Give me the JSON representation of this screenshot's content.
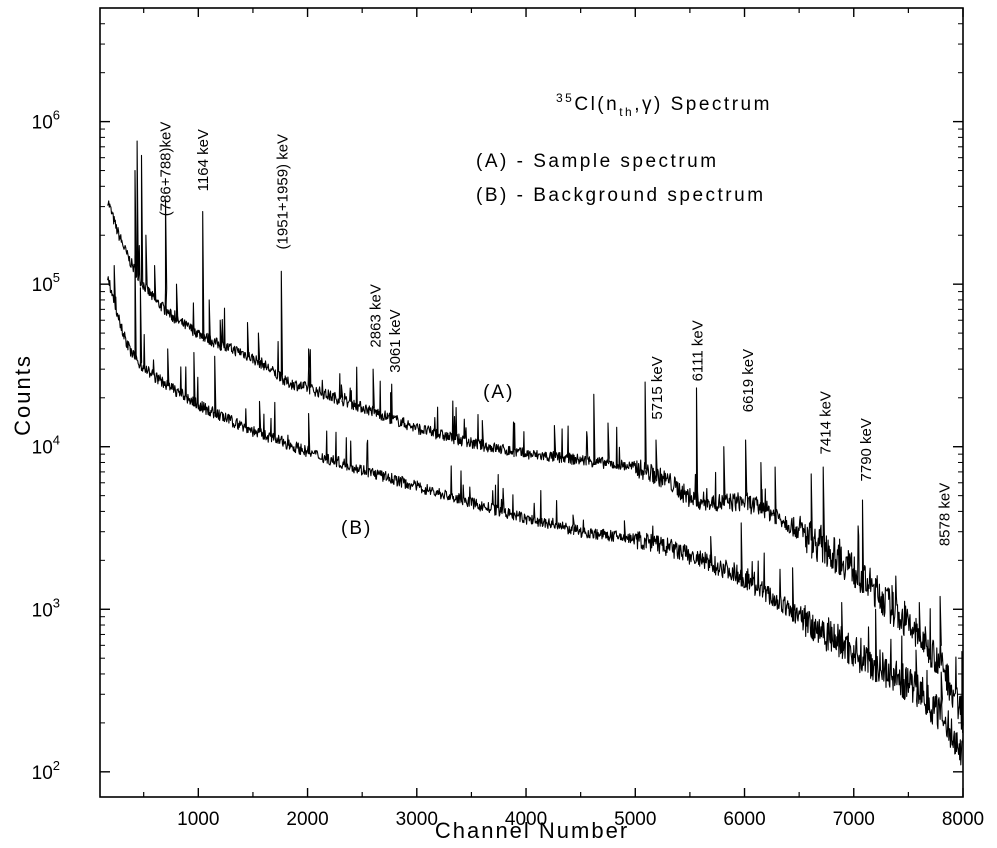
{
  "chart_data": {
    "type": "line",
    "title_parts": {
      "mass": "35",
      "element": "Cl(n",
      "sub": "th",
      "rest": ",γ) Spectrum"
    },
    "xlabel": "Channel Number",
    "ylabel": "Counts",
    "xlim": [
      100,
      8000
    ],
    "ylim": [
      70,
      5000000
    ],
    "y_scale": "log",
    "grid": false,
    "x_ticks": [
      {
        "value": 1000,
        "label": "1000"
      },
      {
        "value": 2000,
        "label": "2000"
      },
      {
        "value": 3000,
        "label": "3000"
      },
      {
        "value": 4000,
        "label": "4000"
      },
      {
        "value": 5000,
        "label": "5000"
      },
      {
        "value": 6000,
        "label": "6000"
      },
      {
        "value": 7000,
        "label": "7000"
      },
      {
        "value": 8000,
        "label": "8000"
      }
    ],
    "y_ticks": [
      {
        "value": 100,
        "base": "10",
        "exp": "2"
      },
      {
        "value": 1000,
        "base": "10",
        "exp": "3"
      },
      {
        "value": 10000,
        "base": "10",
        "exp": "4"
      },
      {
        "value": 100000,
        "base": "10",
        "exp": "5"
      },
      {
        "value": 1000000,
        "base": "10",
        "exp": "6"
      }
    ],
    "legend": [
      "(A) - Sample spectrum",
      "(B) - Background spectrum"
    ],
    "series": [
      {
        "name": "(A)",
        "x": [
          170,
          250,
          350,
          450,
          600,
          800,
          1000,
          1200,
          1400,
          1600,
          1800,
          2000,
          2300,
          2600,
          3000,
          3500,
          4000,
          4500,
          5000,
          5300,
          5500,
          5700,
          6000,
          6300,
          6600,
          6900,
          7200,
          7500,
          7800,
          8000
        ],
        "y": [
          330000,
          220000,
          150000,
          110000,
          80000,
          60000,
          50000,
          42000,
          38000,
          32000,
          25000,
          23000,
          19500,
          16500,
          13000,
          10500,
          9000,
          8300,
          7500,
          6200,
          4800,
          4500,
          4600,
          3800,
          2700,
          2000,
          1300,
          800,
          470,
          220
        ],
        "peaks": [
          {
            "x": 420,
            "y": 500000
          },
          {
            "x": 440,
            "y": 760000
          },
          {
            "x": 480,
            "y": 620000
          },
          {
            "x": 520,
            "y": 200000
          },
          {
            "x": 600,
            "y": 130000
          },
          {
            "x": 700,
            "y": 330000
          },
          {
            "x": 800,
            "y": 100000
          },
          {
            "x": 1040,
            "y": 280000
          },
          {
            "x": 1100,
            "y": 80000
          },
          {
            "x": 1200,
            "y": 60000
          },
          {
            "x": 1450,
            "y": 58000
          },
          {
            "x": 1550,
            "y": 50000
          },
          {
            "x": 1760,
            "y": 120000
          },
          {
            "x": 2010,
            "y": 40000
          },
          {
            "x": 2310,
            "y": 24000
          },
          {
            "x": 2600,
            "y": 30000
          },
          {
            "x": 2760,
            "y": 21500
          },
          {
            "x": 3600,
            "y": 14500
          },
          {
            "x": 4260,
            "y": 13500
          },
          {
            "x": 4620,
            "y": 21000
          },
          {
            "x": 4750,
            "y": 14000
          },
          {
            "x": 5090,
            "y": 25000
          },
          {
            "x": 5190,
            "y": 11000
          },
          {
            "x": 5560,
            "y": 23000
          },
          {
            "x": 5810,
            "y": 10000
          },
          {
            "x": 6010,
            "y": 11000
          },
          {
            "x": 6150,
            "y": 8000
          },
          {
            "x": 6280,
            "y": 7500
          },
          {
            "x": 6610,
            "y": 6800
          },
          {
            "x": 6720,
            "y": 7500
          },
          {
            "x": 6870,
            "y": 2700
          },
          {
            "x": 6950,
            "y": 2300
          },
          {
            "x": 7080,
            "y": 4700
          },
          {
            "x": 7350,
            "y": 1400
          },
          {
            "x": 7600,
            "y": 1100
          },
          {
            "x": 7790,
            "y": 1200
          },
          {
            "x": 7990,
            "y": 550
          }
        ]
      },
      {
        "name": "(B)",
        "x": [
          170,
          250,
          350,
          450,
          600,
          800,
          1000,
          1200,
          1500,
          1800,
          2100,
          2500,
          3000,
          3500,
          4000,
          4500,
          5000,
          5300,
          5600,
          5900,
          6200,
          6500,
          6800,
          7000,
          7300,
          7600,
          7800,
          8000
        ],
        "y": [
          110000,
          70000,
          42000,
          33000,
          27000,
          22000,
          18000,
          15500,
          12500,
          10500,
          8800,
          7200,
          5700,
          4500,
          3600,
          3000,
          2700,
          2400,
          2000,
          1700,
          1250,
          900,
          680,
          550,
          420,
          310,
          220,
          130
        ],
        "peaks": [
          {
            "x": 230,
            "y": 130000
          },
          {
            "x": 420,
            "y": 150000
          },
          {
            "x": 470,
            "y": 95000
          },
          {
            "x": 720,
            "y": 40000
          },
          {
            "x": 960,
            "y": 38000
          },
          {
            "x": 1150,
            "y": 36000
          },
          {
            "x": 1560,
            "y": 19000
          },
          {
            "x": 2010,
            "y": 16000
          },
          {
            "x": 4430,
            "y": 3800
          },
          {
            "x": 4900,
            "y": 3500
          },
          {
            "x": 5690,
            "y": 2800
          },
          {
            "x": 5970,
            "y": 3400
          },
          {
            "x": 6440,
            "y": 1800
          },
          {
            "x": 6890,
            "y": 1100
          },
          {
            "x": 7200,
            "y": 1000
          },
          {
            "x": 7570,
            "y": 560
          },
          {
            "x": 7800,
            "y": 410
          }
        ]
      }
    ],
    "peak_labels": [
      {
        "text": "(786+788)keV",
        "x": 700,
        "y_top": 1000000
      },
      {
        "text": "1164 keV",
        "x": 1045,
        "y_top": 900000
      },
      {
        "text": "(1951+1959) keV",
        "x": 1770,
        "y_top": 840000
      },
      {
        "text": "2863 keV",
        "x": 2620,
        "y_top": 100000
      },
      {
        "text": "3061 keV",
        "x": 2800,
        "y_top": 70000
      },
      {
        "text": "5715 keV",
        "x": 5200,
        "y_top": 36000
      },
      {
        "text": "6111 keV",
        "x": 5570,
        "y_top": 60000
      },
      {
        "text": "6619 keV",
        "x": 6030,
        "y_top": 40000
      },
      {
        "text": "7414 keV",
        "x": 6740,
        "y_top": 22000
      },
      {
        "text": "7790 keV",
        "x": 7110,
        "y_top": 15000
      },
      {
        "text": "8578 keV",
        "x": 7830,
        "y_top": 6000
      }
    ],
    "series_tags": [
      {
        "text": "(A)",
        "x": 3750,
        "y": 20000
      },
      {
        "text": "(B)",
        "x": 2450,
        "y": 2900
      }
    ]
  }
}
